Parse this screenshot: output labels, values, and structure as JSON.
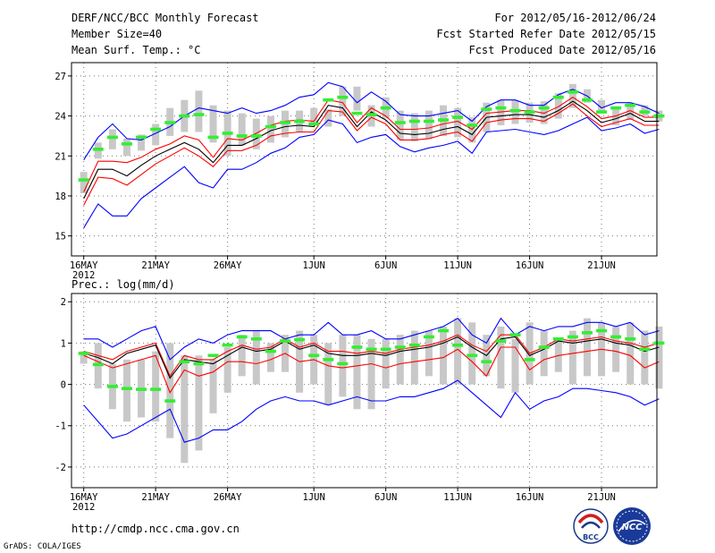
{
  "header": {
    "title": "DERF/NCC/BCC Monthly Forecast",
    "member_size": "Member Size=40",
    "variable": "Mean Surf. Temp.: °C",
    "period": "For 2012/05/16-2012/06/24",
    "started": "Fcst Started Refer Date 2012/05/15",
    "produced": "Fcst Produced Date 2012/05/16"
  },
  "footer": {
    "url": "http://cmdp.ncc.cma.gov.cn",
    "credit": "GrADS: COLA/IGES"
  },
  "logos": {
    "left": "BCC",
    "right": "NCC"
  },
  "colors": {
    "envelope": "#0000ff",
    "spread": "#ff0000",
    "mean": "#000000",
    "box": "#c8c8c8",
    "marker": "#33ee33",
    "grid": "#777777"
  },
  "chart_data": [
    {
      "type": "line",
      "title": "Mean Surf. Temp.: °C",
      "xlabel": "",
      "ylabel": "°C",
      "x_range": [
        16,
        55
      ],
      "ylim": [
        13.5,
        28.0
      ],
      "yticks": [
        15,
        18,
        21,
        24,
        27
      ],
      "xtick_labels": [
        {
          "day": 16,
          "label": "16MAY",
          "sub": "2012"
        },
        {
          "day": 21,
          "label": "21MAY"
        },
        {
          "day": 26,
          "label": "26MAY"
        },
        {
          "day": 32,
          "label": "1JUN"
        },
        {
          "day": 37,
          "label": "6JUN"
        },
        {
          "day": 42,
          "label": "11JUN"
        },
        {
          "day": 47,
          "label": "16JUN"
        },
        {
          "day": 52,
          "label": "21JUN"
        }
      ],
      "box_lo": [
        18.2,
        20.8,
        21.5,
        21.0,
        21.4,
        21.8,
        22.5,
        22.8,
        22.8,
        22.0,
        21.0,
        21.8,
        21.5,
        22.0,
        22.4,
        22.8,
        23.4,
        23.2,
        24.0,
        24.4,
        23.2,
        23.8,
        22.2,
        22.1,
        22.3,
        22.5,
        22.4,
        22.0,
        22.8,
        23.3,
        23.4,
        23.5,
        23.4,
        23.8,
        24.6,
        25.0,
        24.4,
        23.3,
        23.7,
        24.0,
        23.6
      ],
      "box_hi": [
        19.8,
        22.0,
        23.0,
        22.3,
        22.6,
        23.4,
        24.6,
        25.2,
        25.9,
        24.8,
        24.4,
        24.2,
        23.8,
        24.0,
        24.4,
        24.4,
        24.6,
        24.5,
        26.2,
        26.2,
        24.8,
        25.4,
        24.4,
        24.2,
        24.4,
        24.8,
        24.6,
        23.9,
        25.0,
        25.2,
        25.2,
        25.0,
        25.1,
        25.7,
        26.4,
        26.0,
        25.2,
        24.6,
        25.0,
        24.8,
        24.4
      ],
      "marker": [
        19.2,
        21.5,
        22.4,
        21.9,
        22.4,
        23.0,
        23.5,
        24.0,
        24.1,
        22.4,
        22.7,
        22.5,
        22.5,
        23.2,
        23.5,
        23.6,
        23.4,
        25.2,
        25.4,
        24.2,
        24.1,
        24.6,
        23.5,
        23.6,
        23.6,
        23.7,
        23.9,
        23.3,
        24.5,
        24.6,
        24.4,
        24.3,
        24.6,
        25.4,
        25.8,
        25.2,
        24.3,
        24.6,
        24.8,
        24.3,
        24.0
      ],
      "series": [
        {
          "name": "max",
          "role": "envelope",
          "values": [
            20.7,
            22.4,
            23.4,
            22.3,
            22.2,
            22.7,
            23.2,
            24.0,
            24.6,
            24.4,
            24.2,
            24.6,
            24.2,
            24.4,
            24.8,
            25.4,
            25.6,
            26.5,
            26.2,
            25.0,
            25.8,
            25.1,
            24.1,
            24.0,
            24.0,
            24.2,
            24.4,
            23.6,
            24.7,
            25.2,
            25.2,
            24.8,
            24.8,
            25.6,
            26.0,
            25.5,
            24.6,
            25.0,
            25.0,
            24.7,
            24.2
          ]
        },
        {
          "name": "upper",
          "role": "spread",
          "values": [
            18.3,
            20.6,
            20.6,
            20.5,
            20.9,
            21.5,
            21.9,
            22.5,
            22.2,
            20.9,
            22.3,
            22.2,
            22.7,
            23.3,
            23.6,
            23.7,
            23.6,
            25.2,
            25.0,
            23.5,
            24.6,
            24.0,
            23.0,
            23.0,
            23.1,
            23.4,
            23.6,
            23.0,
            24.2,
            24.3,
            24.4,
            24.4,
            24.2,
            24.7,
            25.4,
            24.7,
            23.8,
            24.0,
            24.4,
            23.9,
            23.9
          ]
        },
        {
          "name": "mean",
          "role": "mean",
          "values": [
            17.8,
            20.0,
            20.0,
            19.5,
            20.3,
            21.0,
            21.5,
            22.0,
            21.5,
            20.5,
            21.8,
            21.8,
            22.3,
            22.9,
            23.2,
            23.3,
            23.2,
            24.8,
            24.6,
            23.2,
            24.3,
            23.7,
            22.7,
            22.6,
            22.7,
            23.0,
            23.2,
            22.6,
            23.9,
            24.0,
            24.1,
            24.1,
            23.9,
            24.4,
            25.1,
            24.4,
            23.5,
            23.8,
            24.2,
            23.6,
            23.6
          ]
        },
        {
          "name": "lower",
          "role": "spread",
          "values": [
            17.3,
            19.4,
            19.3,
            18.8,
            19.6,
            20.4,
            21.0,
            21.6,
            21.0,
            20.2,
            21.4,
            21.4,
            21.8,
            22.5,
            22.7,
            22.8,
            22.8,
            24.4,
            24.3,
            22.9,
            23.9,
            23.4,
            22.2,
            22.2,
            22.3,
            22.6,
            22.8,
            22.1,
            23.5,
            23.7,
            23.8,
            23.8,
            23.6,
            24.2,
            24.9,
            24.0,
            23.2,
            23.5,
            23.8,
            23.3,
            23.3
          ]
        },
        {
          "name": "min",
          "role": "envelope",
          "values": [
            15.6,
            17.4,
            16.5,
            16.5,
            17.8,
            18.6,
            19.4,
            20.2,
            19.0,
            18.6,
            20.0,
            20.0,
            20.5,
            21.2,
            21.6,
            22.4,
            22.6,
            23.7,
            23.4,
            22.0,
            22.4,
            22.6,
            21.7,
            21.3,
            21.6,
            21.8,
            22.1,
            21.2,
            22.8,
            22.9,
            23.0,
            22.8,
            22.6,
            22.9,
            23.4,
            23.9,
            22.9,
            23.1,
            23.4,
            22.7,
            23.0
          ]
        }
      ]
    },
    {
      "type": "line",
      "title": "Prec.: log(mm/d)",
      "xlabel": "",
      "ylabel": "log(mm/d)",
      "x_range": [
        16,
        55
      ],
      "ylim": [
        -2.5,
        2.2
      ],
      "yticks": [
        -2,
        -1,
        0,
        1,
        2
      ],
      "xtick_labels": [
        {
          "day": 16,
          "label": "16MAY",
          "sub": "2012"
        },
        {
          "day": 21,
          "label": "21MAY"
        },
        {
          "day": 26,
          "label": "26MAY"
        },
        {
          "day": 32,
          "label": "1JUN"
        },
        {
          "day": 37,
          "label": "6JUN"
        },
        {
          "day": 42,
          "label": "11JUN"
        },
        {
          "day": 47,
          "label": "16JUN"
        },
        {
          "day": 52,
          "label": "21JUN"
        }
      ],
      "box_lo": [
        0.5,
        -0.1,
        -0.6,
        -0.9,
        -0.8,
        -0.9,
        -1.3,
        -1.9,
        -1.6,
        -0.7,
        -0.2,
        0.2,
        0.0,
        0.3,
        0.3,
        -0.2,
        0.0,
        -0.5,
        -0.3,
        -0.6,
        -0.6,
        -0.1,
        0.0,
        0.0,
        0.2,
        0.0,
        0.0,
        0.0,
        0.2,
        -0.1,
        -0.2,
        0.0,
        0.2,
        0.3,
        0.0,
        0.2,
        0.2,
        0.3,
        0.0,
        0.0,
        -0.1
      ],
      "box_hi": [
        0.8,
        1.0,
        0.5,
        0.6,
        0.6,
        0.8,
        1.0,
        0.7,
        0.7,
        0.6,
        0.9,
        1.2,
        1.3,
        1.0,
        1.2,
        1.3,
        1.2,
        1.0,
        1.2,
        1.2,
        1.1,
        1.1,
        1.2,
        1.3,
        1.3,
        1.4,
        1.6,
        1.5,
        1.2,
        1.4,
        1.1,
        1.5,
        1.3,
        1.1,
        1.3,
        1.6,
        1.5,
        1.4,
        1.5,
        1.3,
        1.4
      ],
      "marker": [
        0.75,
        0.48,
        -0.05,
        -0.1,
        -0.12,
        -0.12,
        -0.4,
        0.55,
        0.5,
        0.7,
        0.95,
        1.15,
        1.1,
        0.8,
        1.05,
        1.08,
        0.7,
        0.6,
        0.5,
        0.9,
        0.85,
        0.85,
        0.9,
        0.95,
        1.15,
        1.3,
        0.95,
        0.7,
        0.55,
        1.05,
        1.2,
        0.6,
        0.9,
        1.1,
        1.15,
        1.25,
        1.3,
        1.15,
        1.1,
        0.85,
        1.0
      ],
      "series": [
        {
          "name": "max",
          "role": "envelope",
          "values": [
            1.1,
            1.1,
            0.9,
            1.1,
            1.3,
            1.4,
            0.6,
            0.9,
            1.1,
            1.0,
            1.2,
            1.3,
            1.3,
            1.3,
            1.1,
            1.2,
            1.2,
            1.5,
            1.2,
            1.2,
            1.3,
            1.1,
            1.1,
            1.2,
            1.3,
            1.4,
            1.6,
            1.2,
            1.0,
            1.6,
            1.2,
            1.4,
            1.3,
            1.4,
            1.4,
            1.5,
            1.5,
            1.4,
            1.5,
            1.2,
            1.3
          ]
        },
        {
          "name": "upper",
          "role": "spread",
          "values": [
            0.8,
            0.7,
            0.6,
            0.8,
            0.9,
            1.0,
            0.2,
            0.7,
            0.6,
            0.6,
            0.8,
            0.95,
            0.85,
            0.9,
            1.1,
            0.9,
            1.0,
            0.8,
            0.8,
            0.75,
            0.8,
            0.75,
            0.85,
            0.9,
            0.95,
            1.05,
            1.2,
            0.95,
            0.8,
            1.2,
            1.2,
            0.75,
            0.9,
            1.1,
            1.05,
            1.1,
            1.15,
            1.05,
            1.0,
            0.9,
            1.0
          ]
        },
        {
          "name": "mean",
          "role": "mean",
          "values": [
            0.75,
            0.65,
            0.5,
            0.75,
            0.85,
            0.95,
            0.15,
            0.6,
            0.55,
            0.5,
            0.7,
            0.9,
            0.8,
            0.85,
            1.05,
            0.85,
            0.95,
            0.75,
            0.7,
            0.7,
            0.75,
            0.7,
            0.8,
            0.85,
            0.9,
            1.0,
            1.15,
            0.9,
            0.7,
            1.1,
            1.15,
            0.7,
            0.85,
            1.05,
            1.0,
            1.05,
            1.1,
            1.0,
            0.95,
            0.8,
            0.9
          ]
        },
        {
          "name": "lower",
          "role": "spread",
          "values": [
            0.7,
            0.55,
            0.4,
            0.5,
            0.6,
            0.7,
            -0.2,
            0.35,
            0.2,
            0.3,
            0.55,
            0.55,
            0.5,
            0.6,
            0.75,
            0.55,
            0.6,
            0.45,
            0.4,
            0.45,
            0.5,
            0.4,
            0.5,
            0.55,
            0.6,
            0.65,
            0.85,
            0.55,
            0.2,
            0.9,
            0.9,
            0.35,
            0.6,
            0.7,
            0.75,
            0.8,
            0.85,
            0.8,
            0.7,
            0.4,
            0.55
          ]
        },
        {
          "name": "min",
          "role": "envelope",
          "values": [
            -0.5,
            -0.9,
            -1.3,
            -1.2,
            -1.0,
            -0.8,
            -0.6,
            -1.4,
            -1.3,
            -1.1,
            -1.1,
            -0.9,
            -0.6,
            -0.4,
            -0.3,
            -0.4,
            -0.4,
            -0.5,
            -0.4,
            -0.3,
            -0.4,
            -0.4,
            -0.3,
            -0.3,
            -0.2,
            -0.1,
            0.1,
            -0.2,
            -0.5,
            -0.8,
            -0.2,
            -0.6,
            -0.4,
            -0.3,
            -0.1,
            -0.1,
            -0.15,
            -0.2,
            -0.3,
            -0.5,
            -0.35
          ]
        }
      ]
    }
  ]
}
